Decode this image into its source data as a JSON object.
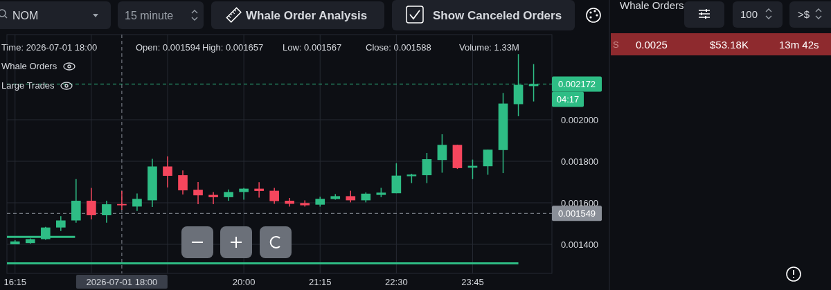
{
  "chart_data": {
    "type": "candlestick",
    "x": [
      "2026-07-01T16:15",
      "2026-07-01T16:30",
      "2026-07-01T16:45",
      "2026-07-01T17:00",
      "2026-07-01T17:15",
      "2026-07-01T17:30",
      "2026-07-01T17:45",
      "2026-07-01T18:00",
      "2026-07-01T18:15",
      "2026-07-01T18:30",
      "2026-07-01T18:45",
      "2026-07-01T19:00",
      "2026-07-01T19:15",
      "2026-07-01T19:30",
      "2026-07-01T19:45",
      "2026-07-01T20:00",
      "2026-07-01T20:15",
      "2026-07-01T20:30",
      "2026-07-01T20:45",
      "2026-07-01T21:00",
      "2026-07-01T21:15",
      "2026-07-01T21:30",
      "2026-07-01T21:45",
      "2026-07-01T22:00",
      "2026-07-01T22:15",
      "2026-07-01T22:30",
      "2026-07-01T22:45",
      "2026-07-01T23:00",
      "2026-07-01T23:15",
      "2026-07-01T23:30",
      "2026-07-01T23:45",
      "2026-07-02T00:00",
      "2026-07-02T00:15",
      "2026-07-02T00:30",
      "2026-07-02T00:45"
    ],
    "ohlc": [
      [
        0.0014,
        0.00142,
        0.0014,
        0.001414
      ],
      [
        0.001406,
        0.001428,
        0.001403,
        0.001425
      ],
      [
        0.001425,
        0.001484,
        0.001422,
        0.001481
      ],
      [
        0.001481,
        0.001536,
        0.001464,
        0.001515
      ],
      [
        0.001515,
        0.001714,
        0.001504,
        0.00161
      ],
      [
        0.00161,
        0.001672,
        0.00152,
        0.00154
      ],
      [
        0.00154,
        0.00161,
        0.001504,
        0.001593
      ],
      [
        0.001594,
        0.001657,
        0.001567,
        0.001588
      ],
      [
        0.001582,
        0.001645,
        0.001561,
        0.001619
      ],
      [
        0.001612,
        0.001812,
        0.00158,
        0.001775
      ],
      [
        0.001775,
        0.001823,
        0.001674,
        0.00173
      ],
      [
        0.001733,
        0.001756,
        0.00164,
        0.00166
      ],
      [
        0.001663,
        0.0017,
        0.001593,
        0.001636
      ],
      [
        0.001638,
        0.001652,
        0.001593,
        0.001627
      ],
      [
        0.001627,
        0.001664,
        0.00161,
        0.001652
      ],
      [
        0.001652,
        0.001672,
        0.001615,
        0.001668
      ],
      [
        0.001668,
        0.001699,
        0.001625,
        0.001657
      ],
      [
        0.001658,
        0.001672,
        0.001595,
        0.001608
      ],
      [
        0.00161,
        0.001623,
        0.001582,
        0.001595
      ],
      [
        0.001599,
        0.001612,
        0.001582,
        0.001588
      ],
      [
        0.001591,
        0.001629,
        0.001582,
        0.001619
      ],
      [
        0.001618,
        0.001642,
        0.001615,
        0.001632
      ],
      [
        0.001632,
        0.001658,
        0.001602,
        0.001612
      ],
      [
        0.001612,
        0.00165,
        0.001602,
        0.001644
      ],
      [
        0.001638,
        0.001672,
        0.001627,
        0.001649
      ],
      [
        0.001646,
        0.00179,
        0.001646,
        0.001731
      ],
      [
        0.001728,
        0.00174,
        0.001695,
        0.001736
      ],
      [
        0.001733,
        0.00184,
        0.001695,
        0.00181
      ],
      [
        0.001806,
        0.00193,
        0.001745,
        0.001879
      ],
      [
        0.001879,
        0.00188,
        0.001763,
        0.001767
      ],
      [
        0.001769,
        0.001808,
        0.001714,
        0.001778
      ],
      [
        0.001776,
        0.001856,
        0.001735,
        0.001856
      ],
      [
        0.001854,
        0.002129,
        0.001743,
        0.002078
      ],
      [
        0.002075,
        0.002316,
        0.002017,
        0.002168
      ],
      [
        0.002162,
        0.002268,
        0.002088,
        0.002172
      ]
    ],
    "colors": [
      "#2ebd85",
      "#2ebd85",
      "#2ebd85",
      "#2ebd85",
      "#2ebd85",
      "#f6465d",
      "#2ebd85",
      "#f6465d",
      "#2ebd85",
      "#2ebd85",
      "#f6465d",
      "#f6465d",
      "#f6465d",
      "#f6465d",
      "#2ebd85",
      "#2ebd85",
      "#f6465d",
      "#f6465d",
      "#f6465d",
      "#f6465d",
      "#2ebd85",
      "#2ebd85",
      "#f6465d",
      "#2ebd85",
      "#2ebd85",
      "#2ebd85",
      "#2ebd85",
      "#2ebd85",
      "#2ebd85",
      "#f6465d",
      "#2ebd85",
      "#2ebd85",
      "#2ebd85",
      "#2ebd85",
      "#2ebd85"
    ],
    "series": [
      {
        "type": "line",
        "color": "#2ebd85",
        "x": [
          "2026-07-01T16:07",
          "2026-07-01T17:14"
        ],
        "values": [
          0.001436,
          0.001436
        ]
      },
      {
        "type": "line",
        "color": "#2ebd85",
        "x": [
          "2026-07-01T16:07",
          "2026-07-02T00:30"
        ],
        "values": [
          0.001308,
          0.001308
        ]
      }
    ],
    "xlim": [
      "2026-07-01T16:07",
      "2026-07-02T01:03"
    ],
    "xticks": [
      {
        "value": "2026-07-01T16:15",
        "label": "16:15"
      },
      {
        "value": "2026-07-01T17:30",
        "label": null
      },
      {
        "value": "2026-07-01T18:45",
        "label": null
      },
      {
        "value": "2026-07-01T20:00",
        "label": "20:00"
      },
      {
        "value": "2026-07-01T21:15",
        "label": "21:15"
      },
      {
        "value": "2026-07-01T22:30",
        "label": "22:30"
      },
      {
        "value": "2026-07-01T23:45",
        "label": "23:45"
      }
    ],
    "ylim": [
      0.00126,
      0.00241
    ],
    "yticks": [
      {
        "value": 0.0014,
        "label": "0.001400"
      },
      {
        "value": 0.0016,
        "label": "0.001600"
      },
      {
        "value": 0.0018,
        "label": "0.001800"
      },
      {
        "value": 0.002,
        "label": "0.002000"
      }
    ],
    "grid": true,
    "ref_lines": [
      {
        "axis": "y",
        "value": 0.002172,
        "label": "0.002172",
        "color": "#2ebd85",
        "line_style": "dashed"
      },
      {
        "axis": "y",
        "value": 0.001549,
        "label": "0.001549",
        "color": "#8a8f98",
        "line_style": "dashed"
      },
      {
        "axis": "x",
        "value": "2026-07-01T18:00",
        "label": "2026-07-01 18:00",
        "color": "#8a8f98",
        "line_style": "dashed"
      }
    ],
    "annotations": [
      "NOM",
      "15 minute",
      "Whale Order Analysis",
      "Show Canceled Orders",
      "Time: 2026-07-01 18:00",
      "Open: 0.001594",
      "High: 0.001657",
      "Low: 0.001567",
      "Close: 0.001588",
      "Volume: 1.33M",
      "Whale Orders",
      "Large Trades",
      "04:17",
      "Whale Orders",
      "100",
      ">$",
      "S",
      "0.0025",
      "$53.18K",
      "13m 42s"
    ]
  }
}
